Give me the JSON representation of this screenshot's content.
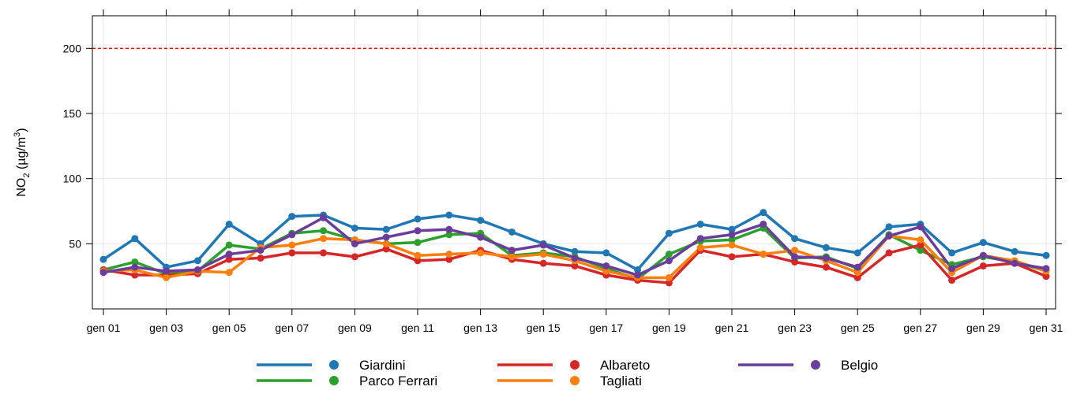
{
  "chart_data": {
    "type": "line",
    "y_label": {
      "main": "NO",
      "sub": "2",
      "mid": " (µg/m",
      "sup": "3",
      "end": ")"
    },
    "categories": [
      "gen 01",
      null,
      "gen 03",
      null,
      "gen 05",
      null,
      "gen 07",
      null,
      "gen 09",
      null,
      "gen 11",
      null,
      "gen 13",
      null,
      "gen 15",
      null,
      "gen 17",
      null,
      "gen 19",
      null,
      "gen 21",
      null,
      "gen 23",
      null,
      "gen 25",
      null,
      "gen 27",
      null,
      "gen 29",
      null,
      "gen 31"
    ],
    "series": [
      {
        "name": "Giardini",
        "color": "#1f77b4",
        "values": [
          38,
          54,
          32,
          37,
          65,
          50,
          71,
          72,
          62,
          61,
          69,
          72,
          68,
          59,
          50,
          44,
          43,
          30,
          58,
          65,
          61,
          74,
          54,
          47,
          43,
          63,
          65,
          43,
          51,
          44,
          41
        ]
      },
      {
        "name": "Parco Ferrari",
        "color": "#2ca02c",
        "values": [
          30,
          36,
          27,
          29,
          49,
          46,
          58,
          60,
          53,
          50,
          51,
          57,
          58,
          41,
          43,
          40,
          31,
          23,
          42,
          52,
          53,
          62,
          39,
          40,
          31,
          57,
          45,
          34,
          40,
          36,
          29
        ]
      },
      {
        "name": "Albareto",
        "color": "#d62728",
        "values": [
          30,
          26,
          26,
          27,
          38,
          39,
          43,
          43,
          40,
          46,
          37,
          38,
          45,
          38,
          35,
          33,
          26,
          22,
          20,
          45,
          40,
          42,
          36,
          32,
          24,
          43,
          49,
          22,
          33,
          35,
          25
        ]
      },
      {
        "name": "Tagliati",
        "color": "#ff7f0e",
        "values": [
          29,
          30,
          24,
          29,
          28,
          47,
          49,
          54,
          53,
          50,
          41,
          42,
          43,
          40,
          42,
          37,
          29,
          24,
          24,
          47,
          49,
          42,
          45,
          37,
          28,
          56,
          53,
          28,
          41,
          37,
          29
        ]
      },
      {
        "name": "Belgio",
        "color": "#6a3d9a",
        "values": [
          28,
          32,
          29,
          30,
          42,
          45,
          57,
          70,
          50,
          55,
          60,
          61,
          55,
          45,
          49,
          39,
          33,
          26,
          37,
          54,
          57,
          65,
          40,
          39,
          32,
          56,
          63,
          31,
          41,
          35,
          31
        ]
      }
    ],
    "ylim": [
      0,
      225
    ],
    "yticks": [
      50,
      100,
      150,
      200
    ],
    "grid": true,
    "reference_line": {
      "value": 200,
      "color": "#ff0000"
    },
    "legend": "bottom"
  }
}
